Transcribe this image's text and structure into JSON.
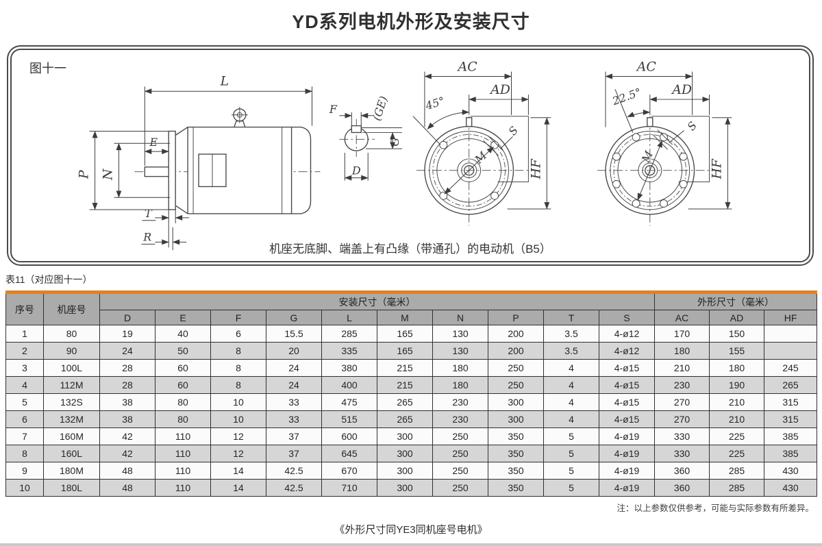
{
  "page_title": "YD系列电机外形及安装尺寸",
  "figure": {
    "label": "图十一",
    "caption": "机座无底脚、端盖上有凸缘（带通孔）的电动机（B5）",
    "dim_labels": {
      "L": "L",
      "E": "E",
      "P": "P",
      "N": "N",
      "T": "T",
      "R": "R",
      "F": "F",
      "GE": "(GE)",
      "G": "G",
      "D": "D"
    },
    "front_b5_4hole": {
      "AC": "AC",
      "AD": "AD",
      "angle": "45°",
      "S": "S",
      "M": "M",
      "HF": "HF"
    },
    "front_b5_8hole": {
      "AC": "AC",
      "AD": "AD",
      "angle": "22.5°",
      "S": "S",
      "M": "M",
      "HF": "HF"
    }
  },
  "table": {
    "label": "表11（对应图十一）",
    "header": {
      "seq": "序号",
      "frame": "机座号",
      "mount_group": "安装尺寸（毫米）",
      "outline_group": "外形尺寸（毫米）"
    },
    "sub_headers": [
      "D",
      "E",
      "F",
      "G",
      "L",
      "M",
      "N",
      "P",
      "T",
      "S",
      "AC",
      "AD",
      "HF"
    ],
    "rows": [
      [
        "1",
        "80",
        "19",
        "40",
        "6",
        "15.5",
        "285",
        "165",
        "130",
        "200",
        "3.5",
        "4-ø12",
        "170",
        "150",
        ""
      ],
      [
        "2",
        "90",
        "24",
        "50",
        "8",
        "20",
        "335",
        "165",
        "130",
        "200",
        "3.5",
        "4-ø12",
        "180",
        "155",
        ""
      ],
      [
        "3",
        "100L",
        "28",
        "60",
        "8",
        "24",
        "380",
        "215",
        "180",
        "250",
        "4",
        "4-ø15",
        "210",
        "180",
        "245"
      ],
      [
        "4",
        "112M",
        "28",
        "60",
        "8",
        "24",
        "400",
        "215",
        "180",
        "250",
        "4",
        "4-ø15",
        "230",
        "190",
        "265"
      ],
      [
        "5",
        "132S",
        "38",
        "80",
        "10",
        "33",
        "475",
        "265",
        "230",
        "300",
        "4",
        "4-ø15",
        "270",
        "210",
        "315"
      ],
      [
        "6",
        "132M",
        "38",
        "80",
        "10",
        "33",
        "515",
        "265",
        "230",
        "300",
        "4",
        "4-ø15",
        "270",
        "210",
        "315"
      ],
      [
        "7",
        "160M",
        "42",
        "110",
        "12",
        "37",
        "600",
        "300",
        "250",
        "350",
        "5",
        "4-ø19",
        "330",
        "225",
        "385"
      ],
      [
        "8",
        "160L",
        "42",
        "110",
        "12",
        "37",
        "645",
        "300",
        "250",
        "350",
        "5",
        "4-ø19",
        "330",
        "225",
        "385"
      ],
      [
        "9",
        "180M",
        "48",
        "110",
        "14",
        "42.5",
        "670",
        "300",
        "250",
        "350",
        "5",
        "4-ø19",
        "360",
        "285",
        "430"
      ],
      [
        "10",
        "180L",
        "48",
        "110",
        "14",
        "42.5",
        "710",
        "300",
        "250",
        "350",
        "5",
        "4-ø19",
        "360",
        "285",
        "430"
      ]
    ]
  },
  "note": "注：以上参数仅供参考，可能与实际参数有所差异。",
  "footer": "《外形尺寸同YE3同机座号电机》",
  "colors": {
    "accent_orange": "#e8801a",
    "header_gray": "#ababab",
    "row_alt_gray": "#d6d6d6",
    "line_dark": "#4a4a4a"
  }
}
